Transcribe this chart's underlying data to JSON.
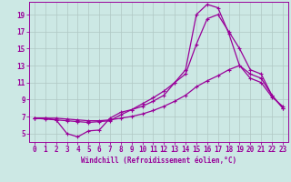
{
  "xlabel": "Windchill (Refroidissement éolien,°C)",
  "background_color": "#cce8e4",
  "grid_color": "#b0c8c4",
  "line_color": "#990099",
  "x_values": [
    0,
    1,
    2,
    3,
    4,
    5,
    6,
    7,
    8,
    9,
    10,
    11,
    12,
    13,
    14,
    15,
    16,
    17,
    18,
    19,
    20,
    21,
    22,
    23
  ],
  "line1": [
    6.8,
    6.8,
    6.6,
    5.0,
    4.6,
    5.3,
    5.4,
    6.8,
    7.5,
    7.8,
    8.2,
    8.8,
    9.5,
    11.0,
    12.5,
    19.0,
    20.2,
    19.8,
    16.8,
    13.0,
    11.5,
    11.0,
    9.3,
    8.2
  ],
  "line2": [
    6.8,
    6.7,
    6.6,
    6.5,
    6.4,
    6.3,
    6.4,
    6.5,
    7.2,
    7.8,
    8.5,
    9.2,
    10.0,
    11.0,
    12.0,
    15.5,
    18.5,
    19.0,
    17.0,
    15.0,
    12.5,
    12.0,
    9.5,
    8.0
  ],
  "line3": [
    6.8,
    6.8,
    6.8,
    6.7,
    6.6,
    6.5,
    6.5,
    6.6,
    6.8,
    7.0,
    7.3,
    7.7,
    8.2,
    8.8,
    9.5,
    10.5,
    11.2,
    11.8,
    12.5,
    13.0,
    12.0,
    11.5,
    9.5,
    8.0
  ],
  "ylim_min": 4.0,
  "ylim_max": 20.5,
  "xlim_min": -0.5,
  "xlim_max": 23.5,
  "yticks": [
    5,
    7,
    9,
    11,
    13,
    15,
    17,
    19
  ],
  "xticks": [
    0,
    1,
    2,
    3,
    4,
    5,
    6,
    7,
    8,
    9,
    10,
    11,
    12,
    13,
    14,
    15,
    16,
    17,
    18,
    19,
    20,
    21,
    22,
    23
  ],
  "tick_fontsize": 5.5,
  "xlabel_fontsize": 5.5,
  "marker": "+",
  "markersize": 3.5,
  "linewidth": 0.9
}
